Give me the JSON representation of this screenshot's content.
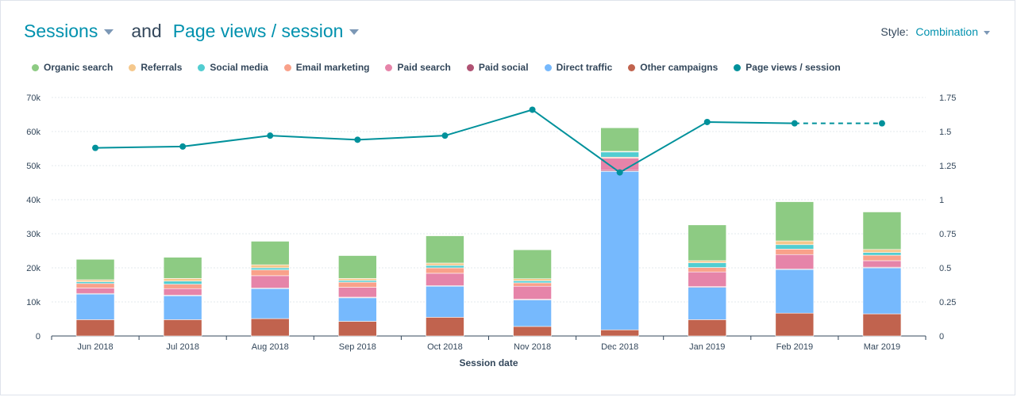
{
  "header": {
    "metric1": "Sessions",
    "connector": "and",
    "metric2": "Page views / session",
    "style_label": "Style:",
    "style_value": "Combination"
  },
  "chart_data": {
    "type": "bar",
    "subtype": "stacked bar with line on secondary axis",
    "categories": [
      "Jun 2018",
      "Jul 2018",
      "Aug 2018",
      "Sep 2018",
      "Oct 2018",
      "Nov 2018",
      "Dec 2018",
      "Jan 2019",
      "Feb 2019",
      "Mar 2019"
    ],
    "xlabel": "Session date",
    "ylim": [
      0,
      70000
    ],
    "y_ticks": [
      "0",
      "10k",
      "20k",
      "30k",
      "40k",
      "50k",
      "60k",
      "70k"
    ],
    "y2lim": [
      0,
      1.75
    ],
    "y2_ticks": [
      "0",
      "0.25",
      "0.5",
      "0.75",
      "1",
      "1.25",
      "1.5",
      "1.75"
    ],
    "grid": true,
    "legend_position": "top-left",
    "series": [
      {
        "name": "Other campaigns",
        "color": "#c1634e",
        "values": [
          4800,
          4800,
          5100,
          4300,
          5500,
          2800,
          1800,
          4800,
          6700,
          6500
        ]
      },
      {
        "name": "Direct traffic",
        "color": "#76b9fd",
        "values": [
          7500,
          7000,
          8800,
          6900,
          9100,
          7800,
          46500,
          9500,
          12800,
          13500
        ]
      },
      {
        "name": "Paid social",
        "color": "#b05273",
        "values": [
          200,
          200,
          200,
          200,
          200,
          200,
          300,
          200,
          200,
          200
        ]
      },
      {
        "name": "Paid search",
        "color": "#e684a9",
        "values": [
          1600,
          1900,
          3600,
          2900,
          3600,
          3800,
          3600,
          4300,
          4200,
          1900
        ]
      },
      {
        "name": "Email marketing",
        "color": "#f9a18a",
        "values": [
          1300,
          1300,
          1700,
          1500,
          1600,
          1000,
          300,
          1300,
          1600,
          1600
        ]
      },
      {
        "name": "Social media",
        "color": "#52cdd1",
        "values": [
          500,
          900,
          600,
          500,
          700,
          600,
          1500,
          1400,
          1300,
          800
        ]
      },
      {
        "name": "Referrals",
        "color": "#f5c88c",
        "values": [
          600,
          800,
          900,
          600,
          700,
          600,
          200,
          600,
          1100,
          900
        ]
      },
      {
        "name": "Organic search",
        "color": "#8dcb83",
        "values": [
          6000,
          6200,
          6900,
          6700,
          8000,
          8500,
          6900,
          10500,
          11500,
          11000
        ]
      }
    ],
    "line": {
      "name": "Page views / session",
      "color": "#00919b",
      "axis": "secondary",
      "values": [
        1.38,
        1.39,
        1.47,
        1.44,
        1.47,
        1.66,
        1.2,
        1.57,
        1.56,
        1.56
      ],
      "dashed_last_segment": true
    },
    "legend_order": [
      "Organic search",
      "Referrals",
      "Social media",
      "Email marketing",
      "Paid search",
      "Paid social",
      "Direct traffic",
      "Other campaigns",
      "Page views / session"
    ]
  }
}
